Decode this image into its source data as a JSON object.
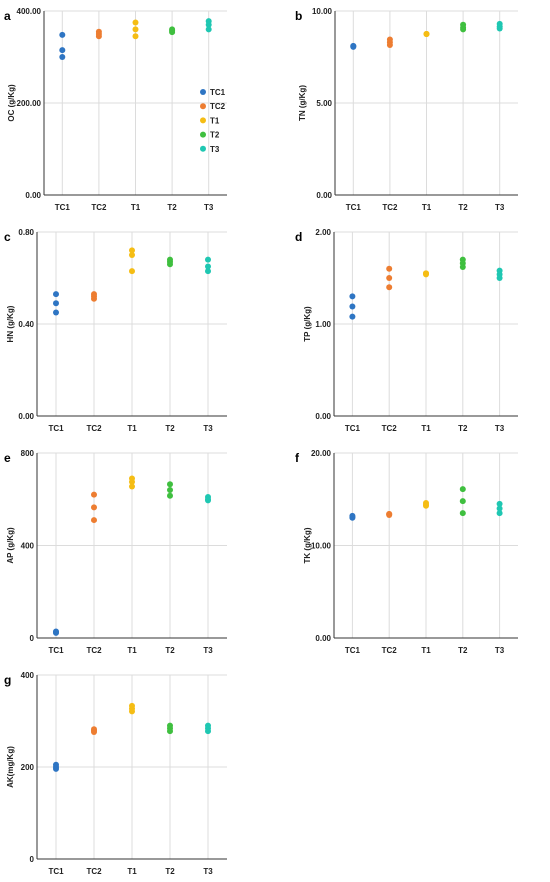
{
  "colors": {
    "TC1": "#2e75c3",
    "TC2": "#ed7d31",
    "T1": "#f5bd14",
    "T2": "#3fbf3f",
    "T3": "#1fc7b2"
  },
  "legend": {
    "placement": "upper-right-inside-panel-a",
    "entries": [
      "TC1",
      "TC2",
      "T1",
      "T2",
      "T3"
    ]
  },
  "chart_data": [
    {
      "type": "scatter",
      "panel_label": "a",
      "ylabel": "OC (g/Kg)",
      "yticks": [
        "0.00",
        "200.00",
        "400.00"
      ],
      "ylim": [
        0,
        400
      ],
      "categories": [
        "TC1",
        "TC2",
        "T1",
        "T2",
        "T3"
      ],
      "series": [
        {
          "name": "TC1",
          "values": [
            348,
            315,
            300
          ]
        },
        {
          "name": "TC2",
          "values": [
            355,
            350,
            345
          ]
        },
        {
          "name": "T1",
          "values": [
            375,
            360,
            345
          ]
        },
        {
          "name": "T2",
          "values": [
            360,
            357,
            354
          ]
        },
        {
          "name": "T3",
          "values": [
            378,
            370,
            360
          ]
        }
      ]
    },
    {
      "type": "scatter",
      "panel_label": "b",
      "ylabel": "TN (g/Kg)",
      "yticks": [
        "0.00",
        "5.00",
        "10.00"
      ],
      "ylim": [
        0,
        10
      ],
      "categories": [
        "TC1",
        "TC2",
        "T1",
        "T2",
        "T3"
      ],
      "series": [
        {
          "name": "TC1",
          "values": [
            8.1,
            8.05,
            8.1
          ]
        },
        {
          "name": "TC2",
          "values": [
            8.45,
            8.3,
            8.15
          ]
        },
        {
          "name": "T1",
          "values": [
            8.75,
            8.75,
            8.75
          ]
        },
        {
          "name": "T2",
          "values": [
            9.25,
            9.1,
            9.0
          ]
        },
        {
          "name": "T3",
          "values": [
            9.3,
            9.15,
            9.05
          ]
        }
      ]
    },
    {
      "type": "scatter",
      "panel_label": "c",
      "ylabel": "HN (g/Kg)",
      "yticks": [
        "0.00",
        "0.40",
        "0.80"
      ],
      "ylim": [
        0,
        0.8
      ],
      "categories": [
        "TC1",
        "TC2",
        "T1",
        "T2",
        "T3"
      ],
      "series": [
        {
          "name": "TC1",
          "values": [
            0.53,
            0.49,
            0.45
          ]
        },
        {
          "name": "TC2",
          "values": [
            0.53,
            0.52,
            0.51
          ]
        },
        {
          "name": "T1",
          "values": [
            0.72,
            0.7,
            0.63
          ]
        },
        {
          "name": "T2",
          "values": [
            0.68,
            0.67,
            0.66
          ]
        },
        {
          "name": "T3",
          "values": [
            0.68,
            0.65,
            0.63
          ]
        }
      ]
    },
    {
      "type": "scatter",
      "panel_label": "d",
      "ylabel": "TP (g/Kg)",
      "yticks": [
        "0.00",
        "1.00",
        "2.00"
      ],
      "ylim": [
        0,
        2
      ],
      "categories": [
        "TC1",
        "TC2",
        "T1",
        "T2",
        "T3"
      ],
      "series": [
        {
          "name": "TC1",
          "values": [
            1.3,
            1.19,
            1.08
          ]
        },
        {
          "name": "TC2",
          "values": [
            1.6,
            1.5,
            1.4
          ]
        },
        {
          "name": "T1",
          "values": [
            1.55,
            1.54,
            1.55
          ]
        },
        {
          "name": "T2",
          "values": [
            1.7,
            1.66,
            1.62
          ]
        },
        {
          "name": "T3",
          "values": [
            1.58,
            1.54,
            1.5
          ]
        }
      ]
    },
    {
      "type": "scatter",
      "panel_label": "e",
      "ylabel": "AP (g/Kg)",
      "yticks": [
        "0",
        "400",
        "800"
      ],
      "ylim": [
        0,
        800
      ],
      "categories": [
        "TC1",
        "TC2",
        "T1",
        "T2",
        "T3"
      ],
      "series": [
        {
          "name": "TC1",
          "values": [
            28,
            25,
            22
          ]
        },
        {
          "name": "TC2",
          "values": [
            620,
            565,
            510
          ]
        },
        {
          "name": "T1",
          "values": [
            690,
            675,
            655
          ]
        },
        {
          "name": "T2",
          "values": [
            665,
            640,
            615
          ]
        },
        {
          "name": "T3",
          "values": [
            610,
            600,
            595
          ]
        }
      ]
    },
    {
      "type": "scatter",
      "panel_label": "f",
      "ylabel": "TK (g/Kg)",
      "yticks": [
        "0.00",
        "10.00",
        "20.00"
      ],
      "ylim": [
        0,
        20
      ],
      "categories": [
        "TC1",
        "TC2",
        "T1",
        "T2",
        "T3"
      ],
      "series": [
        {
          "name": "TC1",
          "values": [
            13.2,
            13.0,
            13.1
          ]
        },
        {
          "name": "TC2",
          "values": [
            13.4,
            13.3,
            13.4
          ]
        },
        {
          "name": "T1",
          "values": [
            14.6,
            14.4,
            14.3
          ]
        },
        {
          "name": "T2",
          "values": [
            16.1,
            14.8,
            13.5
          ]
        },
        {
          "name": "T3",
          "values": [
            14.5,
            14.0,
            13.5
          ]
        }
      ]
    },
    {
      "type": "scatter",
      "panel_label": "g",
      "ylabel": "AK(mg/Kg)",
      "yticks": [
        "0",
        "200",
        "400"
      ],
      "ylim": [
        0,
        400
      ],
      "categories": [
        "TC1",
        "TC2",
        "T1",
        "T2",
        "T3"
      ],
      "series": [
        {
          "name": "TC1",
          "values": [
            205,
            200,
            196
          ]
        },
        {
          "name": "TC2",
          "values": [
            282,
            279,
            276
          ]
        },
        {
          "name": "T1",
          "values": [
            333,
            327,
            321
          ]
        },
        {
          "name": "T2",
          "values": [
            290,
            284,
            278
          ]
        },
        {
          "name": "T3",
          "values": [
            290,
            284,
            278
          ]
        }
      ]
    }
  ]
}
